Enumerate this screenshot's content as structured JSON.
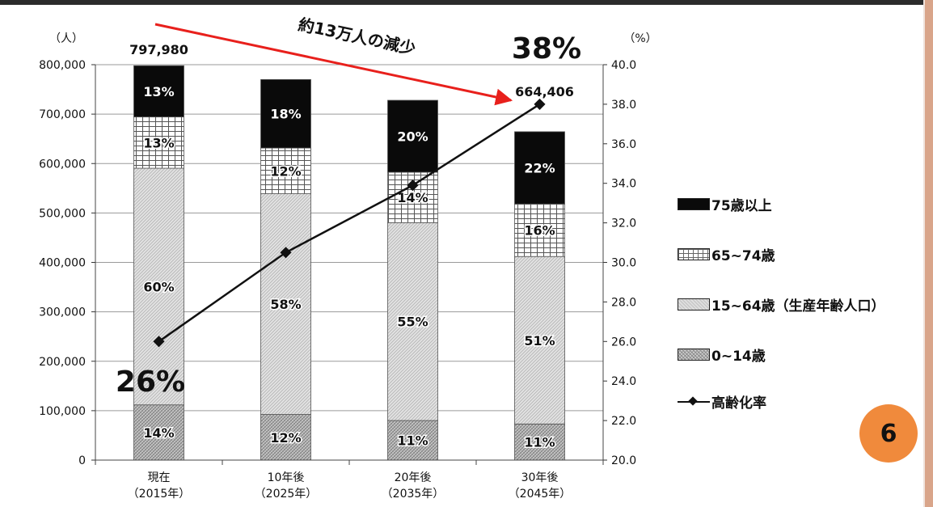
{
  "chart_data": {
    "type": "bar",
    "stacked": true,
    "categories": [
      [
        "現在",
        "（2015年）"
      ],
      [
        "10年後",
        "（2025年）"
      ],
      [
        "20年後",
        "（2035年）"
      ],
      [
        "30年後",
        "（2045年）"
      ]
    ],
    "totals": [
      797980,
      770000,
      728000,
      664406
    ],
    "total_labels": [
      "797,980",
      "",
      "",
      "664,406"
    ],
    "series": [
      {
        "name": "0~14歳",
        "key": "c0",
        "values": [
          111717,
          92400,
          80080,
          73085
        ],
        "labels": [
          "14%",
          "12%",
          "11%",
          "11%"
        ]
      },
      {
        "name": "15~64歳（生産年齢人口）",
        "key": "c1",
        "values": [
          478788,
          446600,
          400400,
          338847
        ],
        "labels": [
          "60%",
          "58%",
          "55%",
          "51%"
        ]
      },
      {
        "name": "65~74歳",
        "key": "c2",
        "values": [
          103737,
          92400,
          101920,
          106305
        ],
        "labels": [
          "13%",
          "12%",
          "14%",
          "16%"
        ]
      },
      {
        "name": "75歳以上",
        "key": "c3",
        "values": [
          103737,
          138600,
          145600,
          146169
        ],
        "labels": [
          "13%",
          "18%",
          "20%",
          "22%"
        ]
      }
    ],
    "line": {
      "name": "高齢化率",
      "values": [
        26.0,
        30.5,
        33.9,
        38.0
      ]
    },
    "y_left": {
      "unit": "（人）",
      "min": 0,
      "max": 800000,
      "ticks": [
        0,
        100000,
        200000,
        300000,
        400000,
        500000,
        600000,
        700000,
        800000
      ],
      "tick_labels": [
        "0",
        "100,000",
        "200,000",
        "300,000",
        "400,000",
        "500,000",
        "600,000",
        "700,000",
        "800,000"
      ]
    },
    "y_right": {
      "unit": "（%）",
      "min": 20.0,
      "max": 40.0,
      "ticks": [
        20,
        22,
        24,
        26,
        28,
        30,
        32,
        34,
        36,
        38,
        40
      ],
      "tick_labels": [
        "20.0",
        "22.0",
        "24.0",
        "26.0",
        "28.0",
        "30.0",
        "32.0",
        "34.0",
        "36.0",
        "38.0",
        "40.0"
      ]
    },
    "annotations": {
      "decline": "約13万人の減少",
      "start_rate": "26%",
      "end_rate": "38%"
    },
    "legend_position": "right",
    "grid": true
  },
  "page_number": "6",
  "colors": {
    "arrow": "#e8201c",
    "badge": "#f08a3c",
    "black_band": "#0a0a0a"
  }
}
